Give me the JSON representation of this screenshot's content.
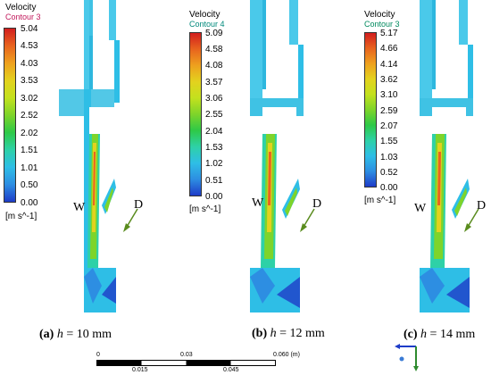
{
  "palette": [
    "#d21e1e",
    "#e8641e",
    "#eea11e",
    "#e3d21e",
    "#c3e11e",
    "#7ed42a",
    "#2ec947",
    "#2ed1a7",
    "#2ebee6",
    "#2d8ee2",
    "#1e3cc8"
  ],
  "panels": [
    {
      "legend": {
        "title": "Velocity",
        "subtitle": "Contour 3",
        "subtitle_color": "#c2185b",
        "levels": [
          "5.04",
          "4.53",
          "4.03",
          "3.53",
          "3.02",
          "2.52",
          "2.02",
          "1.51",
          "1.01",
          "0.50",
          "0.00"
        ],
        "unit": "[m s^-1]"
      },
      "caption": {
        "letter": "(a)",
        "var": "h",
        "rest": " = 10 mm"
      },
      "label_w": "W",
      "label_d": "D"
    },
    {
      "legend": {
        "title": "Velocity",
        "subtitle": "Contour 4",
        "subtitle_color": "#00897b",
        "levels": [
          "5.09",
          "4.58",
          "4.08",
          "3.57",
          "3.06",
          "2.55",
          "2.04",
          "1.53",
          "1.02",
          "0.51",
          "0.00"
        ],
        "unit": "[m s^-1]"
      },
      "caption": {
        "letter": "(b)",
        "var": "h",
        "rest": " = 12 mm"
      },
      "label_w": "W",
      "label_d": "D"
    },
    {
      "legend": {
        "title": "Velocity",
        "subtitle": "Contour 3",
        "subtitle_color": "#008a5e",
        "levels": [
          "5.17",
          "4.66",
          "4.14",
          "3.62",
          "3.10",
          "2.59",
          "2.07",
          "1.55",
          "1.03",
          "0.52",
          "0.00"
        ],
        "unit": "[m s^-1]"
      },
      "caption": {
        "letter": "(c)",
        "var": "h",
        "rest": " = 14 mm"
      },
      "label_w": "W",
      "label_d": "D"
    }
  ],
  "scale_bar": {
    "ticks_top": [
      "0",
      "0.03",
      "0.060 (m)"
    ],
    "ticks_bottom": [
      "0.015",
      "0.045"
    ]
  }
}
